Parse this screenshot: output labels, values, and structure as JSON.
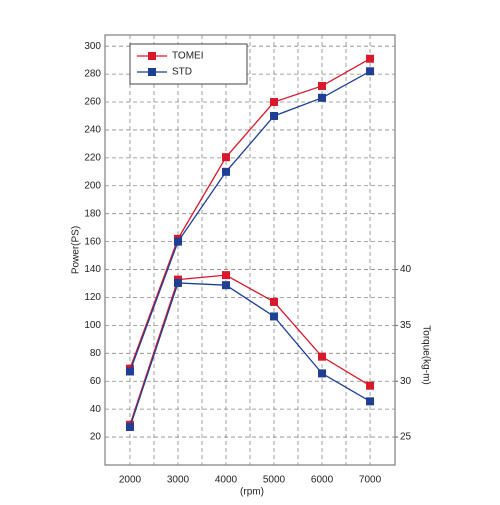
{
  "chart_data": {
    "type": "line",
    "xlabel": "(rpm)",
    "ylabel": "Power(PS)",
    "y2label": "Torque(kg-m)",
    "x": [
      2000,
      3000,
      4000,
      5000,
      6000,
      7000
    ],
    "series": [
      {
        "name": "TOMEI",
        "color": "#d7192a",
        "values": [
          69,
          162,
          220.5,
          260,
          271.5,
          291
        ]
      },
      {
        "name": "STD",
        "color": "#1f3f95",
        "values": [
          67,
          160,
          210,
          250,
          263,
          282
        ]
      },
      {
        "name": "TOMEI",
        "color": "#d7192a",
        "axis": "y2",
        "values": [
          26.1,
          39.1,
          39.5,
          37.1,
          32.2,
          29.6
        ]
      },
      {
        "name": "STD",
        "color": "#1f3f95",
        "axis": "y2",
        "values": [
          25.9,
          38.8,
          38.6,
          35.8,
          30.7,
          28.2
        ]
      }
    ],
    "xlim": [
      1480,
      7520
    ],
    "xticks": [
      2000,
      3000,
      4000,
      5000,
      6000,
      7000
    ],
    "xminorticks": [
      2500,
      3500,
      4500,
      5500,
      6500
    ],
    "ylim": [
      0,
      308
    ],
    "yticks": [
      20,
      40,
      60,
      80,
      100,
      120,
      140,
      160,
      180,
      200,
      220,
      240,
      260,
      280,
      300
    ],
    "y2lim": [
      22.5,
      61
    ],
    "y2ticks": [
      25,
      30,
      35,
      40
    ],
    "grid": true,
    "legend": "upper left"
  }
}
